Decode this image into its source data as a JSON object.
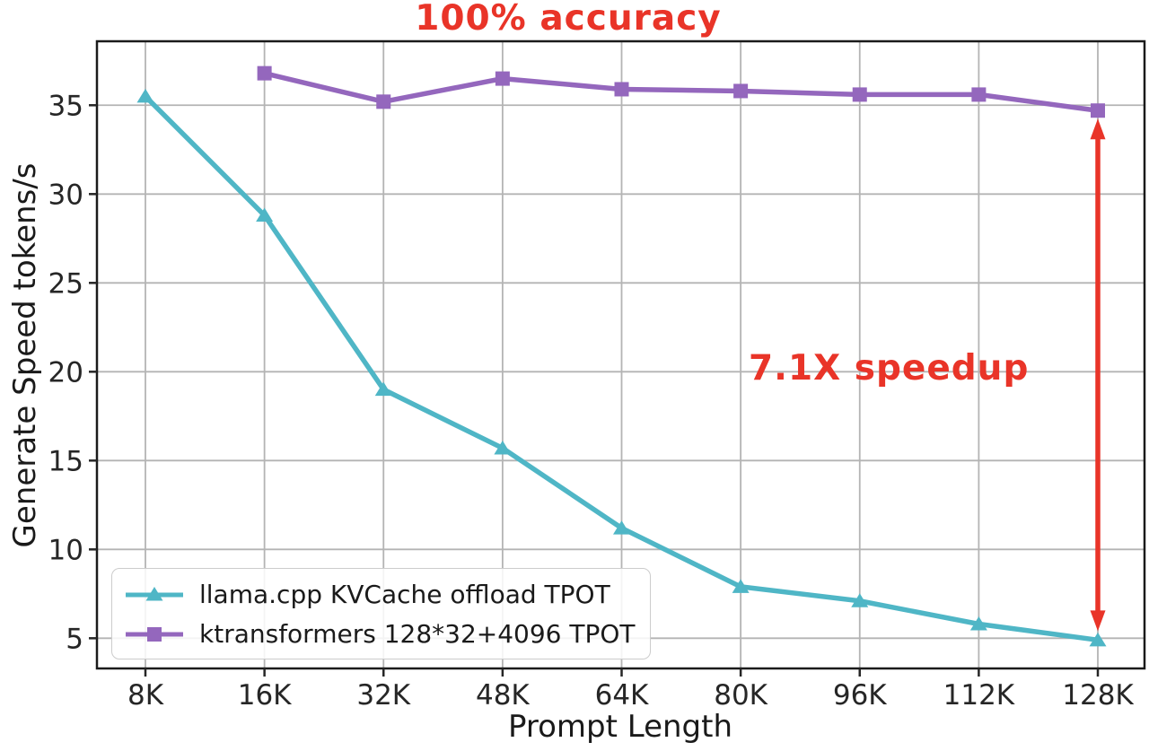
{
  "chart_data": {
    "type": "line",
    "title": "100% accuracy",
    "xlabel": "Prompt Length",
    "ylabel": "Generate Speed tokens/s",
    "categories": [
      "8K",
      "16K",
      "32K",
      "48K",
      "64K",
      "80K",
      "96K",
      "112K",
      "128K"
    ],
    "y_ticks": [
      5,
      10,
      15,
      20,
      25,
      30,
      35
    ],
    "ylim": [
      3.3,
      38.6
    ],
    "grid": true,
    "legend_position": "lower-left",
    "series": [
      {
        "name": "llama.cpp KVCache offload TPOT",
        "color": "#4fb6c6",
        "marker": "triangle",
        "values": [
          35.5,
          28.8,
          19.0,
          15.7,
          11.2,
          7.9,
          7.1,
          5.8,
          4.9
        ]
      },
      {
        "name": "ktransformers 128*32+4096 TPOT",
        "color": "#9467bd",
        "marker": "square",
        "values": [
          null,
          36.8,
          35.2,
          36.5,
          35.9,
          35.8,
          35.6,
          35.6,
          34.7
        ]
      }
    ],
    "annotations": [
      {
        "id": "accuracy-label",
        "text": "100% accuracy",
        "color": "#e93428"
      },
      {
        "id": "speedup-label",
        "text": "7.1X speedup",
        "color": "#e93428"
      },
      {
        "id": "speedup-arrow",
        "type": "vertical-double-arrow",
        "category": "128K",
        "from_value": 34.7,
        "to_value": 4.9,
        "color": "#e93428"
      }
    ],
    "axis_color": "#1a1a1a",
    "grid_color": "#b0b0b0"
  }
}
